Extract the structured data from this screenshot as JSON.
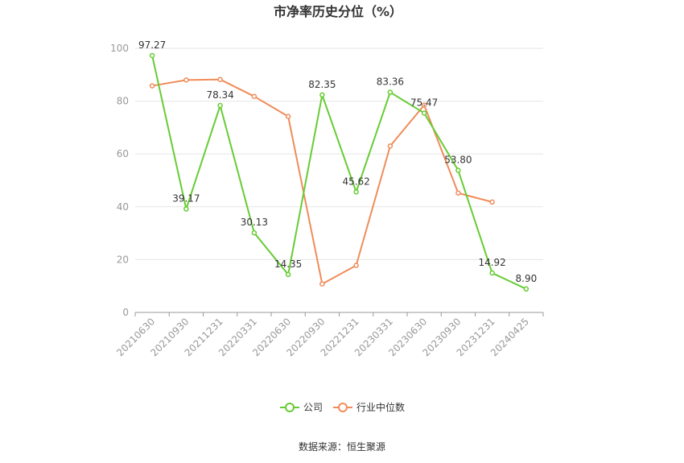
{
  "chart_data": {
    "type": "line",
    "title": "市净率历史分位（%）",
    "categories": [
      "20210630",
      "20210930",
      "20211231",
      "20220331",
      "20220630",
      "20220930",
      "20221231",
      "20230331",
      "20230630",
      "20230930",
      "20231231",
      "20240425"
    ],
    "ylim": [
      0,
      100
    ],
    "yticks": [
      0,
      20,
      40,
      60,
      80,
      100
    ],
    "grid": true,
    "legend_position": "bottom",
    "series": [
      {
        "name": "公司",
        "color": "#66cc33",
        "values": [
          97.27,
          39.17,
          78.34,
          30.13,
          14.35,
          82.35,
          45.62,
          83.36,
          75.47,
          53.8,
          14.92,
          8.9
        ],
        "labels": [
          "97.27",
          "39.17",
          "78.34",
          "30.13",
          "14.35",
          "82.35",
          "45.62",
          "83.36",
          "75.47",
          "53.80",
          "14.92",
          "8.90"
        ]
      },
      {
        "name": "行业中位数",
        "color": "#f08c5a",
        "values": [
          85.8,
          88.0,
          88.2,
          81.8,
          74.2,
          10.8,
          17.8,
          63.0,
          78.5,
          45.2,
          41.8,
          null
        ]
      }
    ],
    "source": "数据来源：恒生聚源"
  }
}
